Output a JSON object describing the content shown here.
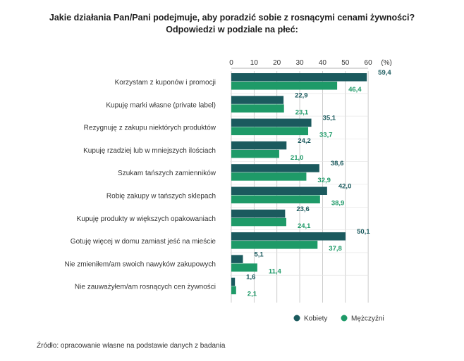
{
  "title_line1": "Jakie działania Pan/Pani podejmuje, aby poradzić sobie z rosnącymi cenami żywności?",
  "title_line2": "Odpowiedzi w podziale na płeć:",
  "source": "Źródło: opracowanie własne na podstawie danych z badania",
  "colors": {
    "kobiety": "#1b5a5e",
    "mezczyzni": "#1e9a68",
    "grid": "#bfbfbf",
    "axis": "#9a9a9a"
  },
  "chart_data": {
    "type": "bar",
    "orientation": "horizontal",
    "unit_label": "(%)",
    "xlim": [
      0,
      60
    ],
    "xticks": [
      "0",
      "10",
      "20",
      "30",
      "40",
      "50",
      "60"
    ],
    "legend_position": "bottom-right",
    "categories": [
      "Korzystam z kuponów i promocji",
      "Kupuję marki własne (private label)",
      "Rezygnuję z zakupu niektórych produktów",
      "Kupuję rzadziej lub w mniejszych ilościach",
      "Szukam tańszych zamienników",
      "Robię zakupy w tańszych sklepach",
      "Kupuję produkty w większych opakowaniach",
      "Gotuję więcej w domu zamiast jeść na mieście",
      "Nie zmieniłem/am swoich nawyków zakupowych",
      "Nie zauważyłem/am rosnących cen żywności"
    ],
    "series": [
      {
        "name": "Kobiety",
        "values": [
          59.4,
          22.9,
          35.1,
          24.2,
          38.6,
          42.0,
          23.6,
          50.1,
          5.1,
          1.6
        ],
        "labels": [
          "59,4",
          "22,9",
          "35,1",
          "24,2",
          "38,6",
          "42,0",
          "23,6",
          "50,1",
          "5,1",
          "1,6"
        ]
      },
      {
        "name": "Mężczyźni",
        "values": [
          46.4,
          23.1,
          33.7,
          21.0,
          32.9,
          38.9,
          24.1,
          37.8,
          11.4,
          2.1
        ],
        "labels": [
          "46,4",
          "23,1",
          "33,7",
          "21,0",
          "32,9",
          "38,9",
          "24,1",
          "37,8",
          "11,4",
          "2,1"
        ]
      }
    ]
  }
}
